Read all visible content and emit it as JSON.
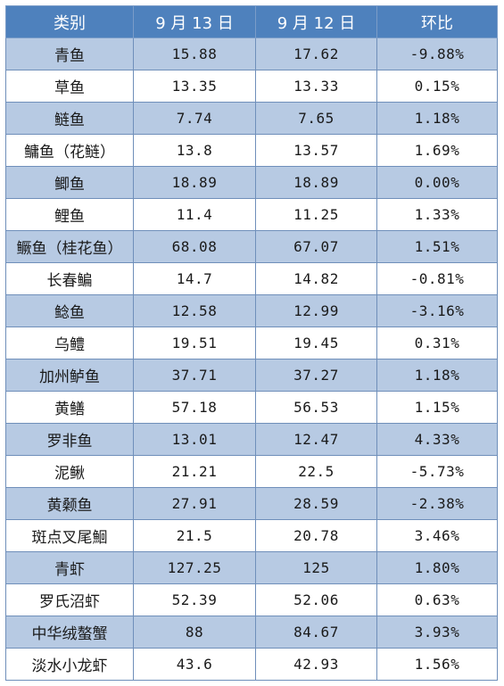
{
  "table": {
    "headers": [
      "类别",
      "9 月 13 日",
      "9 月 12 日",
      "环比"
    ],
    "rows": [
      [
        "青鱼",
        "15.88",
        "17.62",
        "-9.88%"
      ],
      [
        "草鱼",
        "13.35",
        "13.33",
        "0.15%"
      ],
      [
        "鲢鱼",
        "7.74",
        "7.65",
        "1.18%"
      ],
      [
        "鳙鱼（花鲢）",
        "13.8",
        "13.57",
        "1.69%"
      ],
      [
        "鲫鱼",
        "18.89",
        "18.89",
        "0.00%"
      ],
      [
        "鲤鱼",
        "11.4",
        "11.25",
        "1.33%"
      ],
      [
        "鳜鱼（桂花鱼）",
        "68.08",
        "67.07",
        "1.51%"
      ],
      [
        "长春鳊",
        "14.7",
        "14.82",
        "-0.81%"
      ],
      [
        "鲶鱼",
        "12.58",
        "12.99",
        "-3.16%"
      ],
      [
        "乌鳢",
        "19.51",
        "19.45",
        "0.31%"
      ],
      [
        "加州鲈鱼",
        "37.71",
        "37.27",
        "1.18%"
      ],
      [
        "黄鳝",
        "57.18",
        "56.53",
        "1.15%"
      ],
      [
        "罗非鱼",
        "13.01",
        "12.47",
        "4.33%"
      ],
      [
        "泥鳅",
        "21.21",
        "22.5",
        "-5.73%"
      ],
      [
        "黄颡鱼",
        "27.91",
        "28.59",
        "-2.38%"
      ],
      [
        "斑点叉尾鮰",
        "21.5",
        "20.78",
        "3.46%"
      ],
      [
        "青虾",
        "127.25",
        "125",
        "1.80%"
      ],
      [
        "罗氏沼虾",
        "52.39",
        "52.06",
        "0.63%"
      ],
      [
        "中华绒螯蟹",
        "88",
        "84.67",
        "3.93%"
      ],
      [
        "淡水小龙虾",
        "43.6",
        "42.93",
        "1.56%"
      ]
    ]
  },
  "colors": {
    "header_bg": "#4e81bd",
    "header_text": "#ffffff",
    "stripe_bg": "#b7cae3",
    "plain_bg": "#ffffff",
    "border": "#6f8fba"
  }
}
